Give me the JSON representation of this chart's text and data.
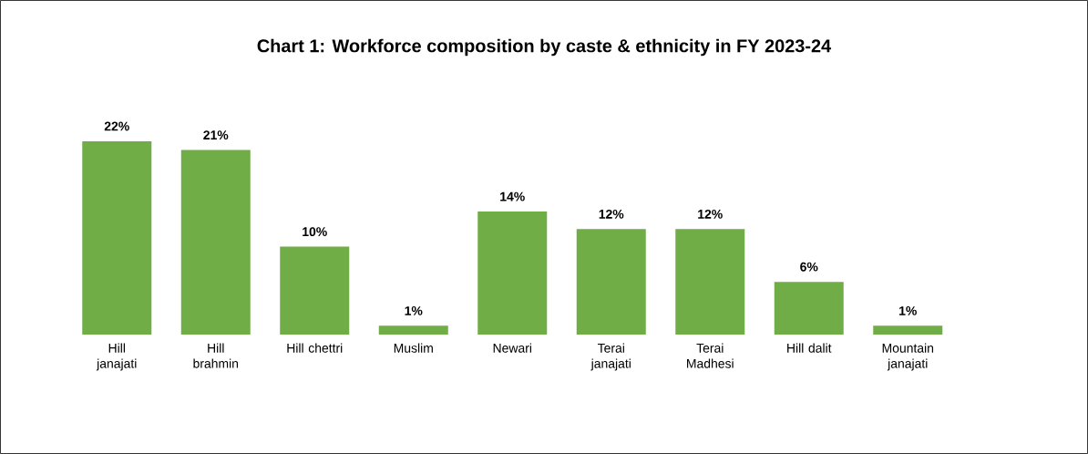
{
  "chart_data": {
    "type": "bar",
    "title": "Chart 1: Workforce composition by caste & ethnicity in FY 2023-24",
    "categories": [
      "Hill janajati",
      "Hill brahmin",
      "Hill chettri",
      "Muslim",
      "Newari",
      "Terai janajati",
      "Terai Madhesi",
      "Hill dalit",
      "Mountain janajati"
    ],
    "values": [
      22,
      21,
      10,
      1,
      14,
      12,
      12,
      6,
      1
    ],
    "value_labels": [
      "22%",
      "21%",
      "10%",
      "1%",
      "14%",
      "12%",
      "12%",
      "6%",
      "1%"
    ],
    "color": "#70ad47"
  }
}
